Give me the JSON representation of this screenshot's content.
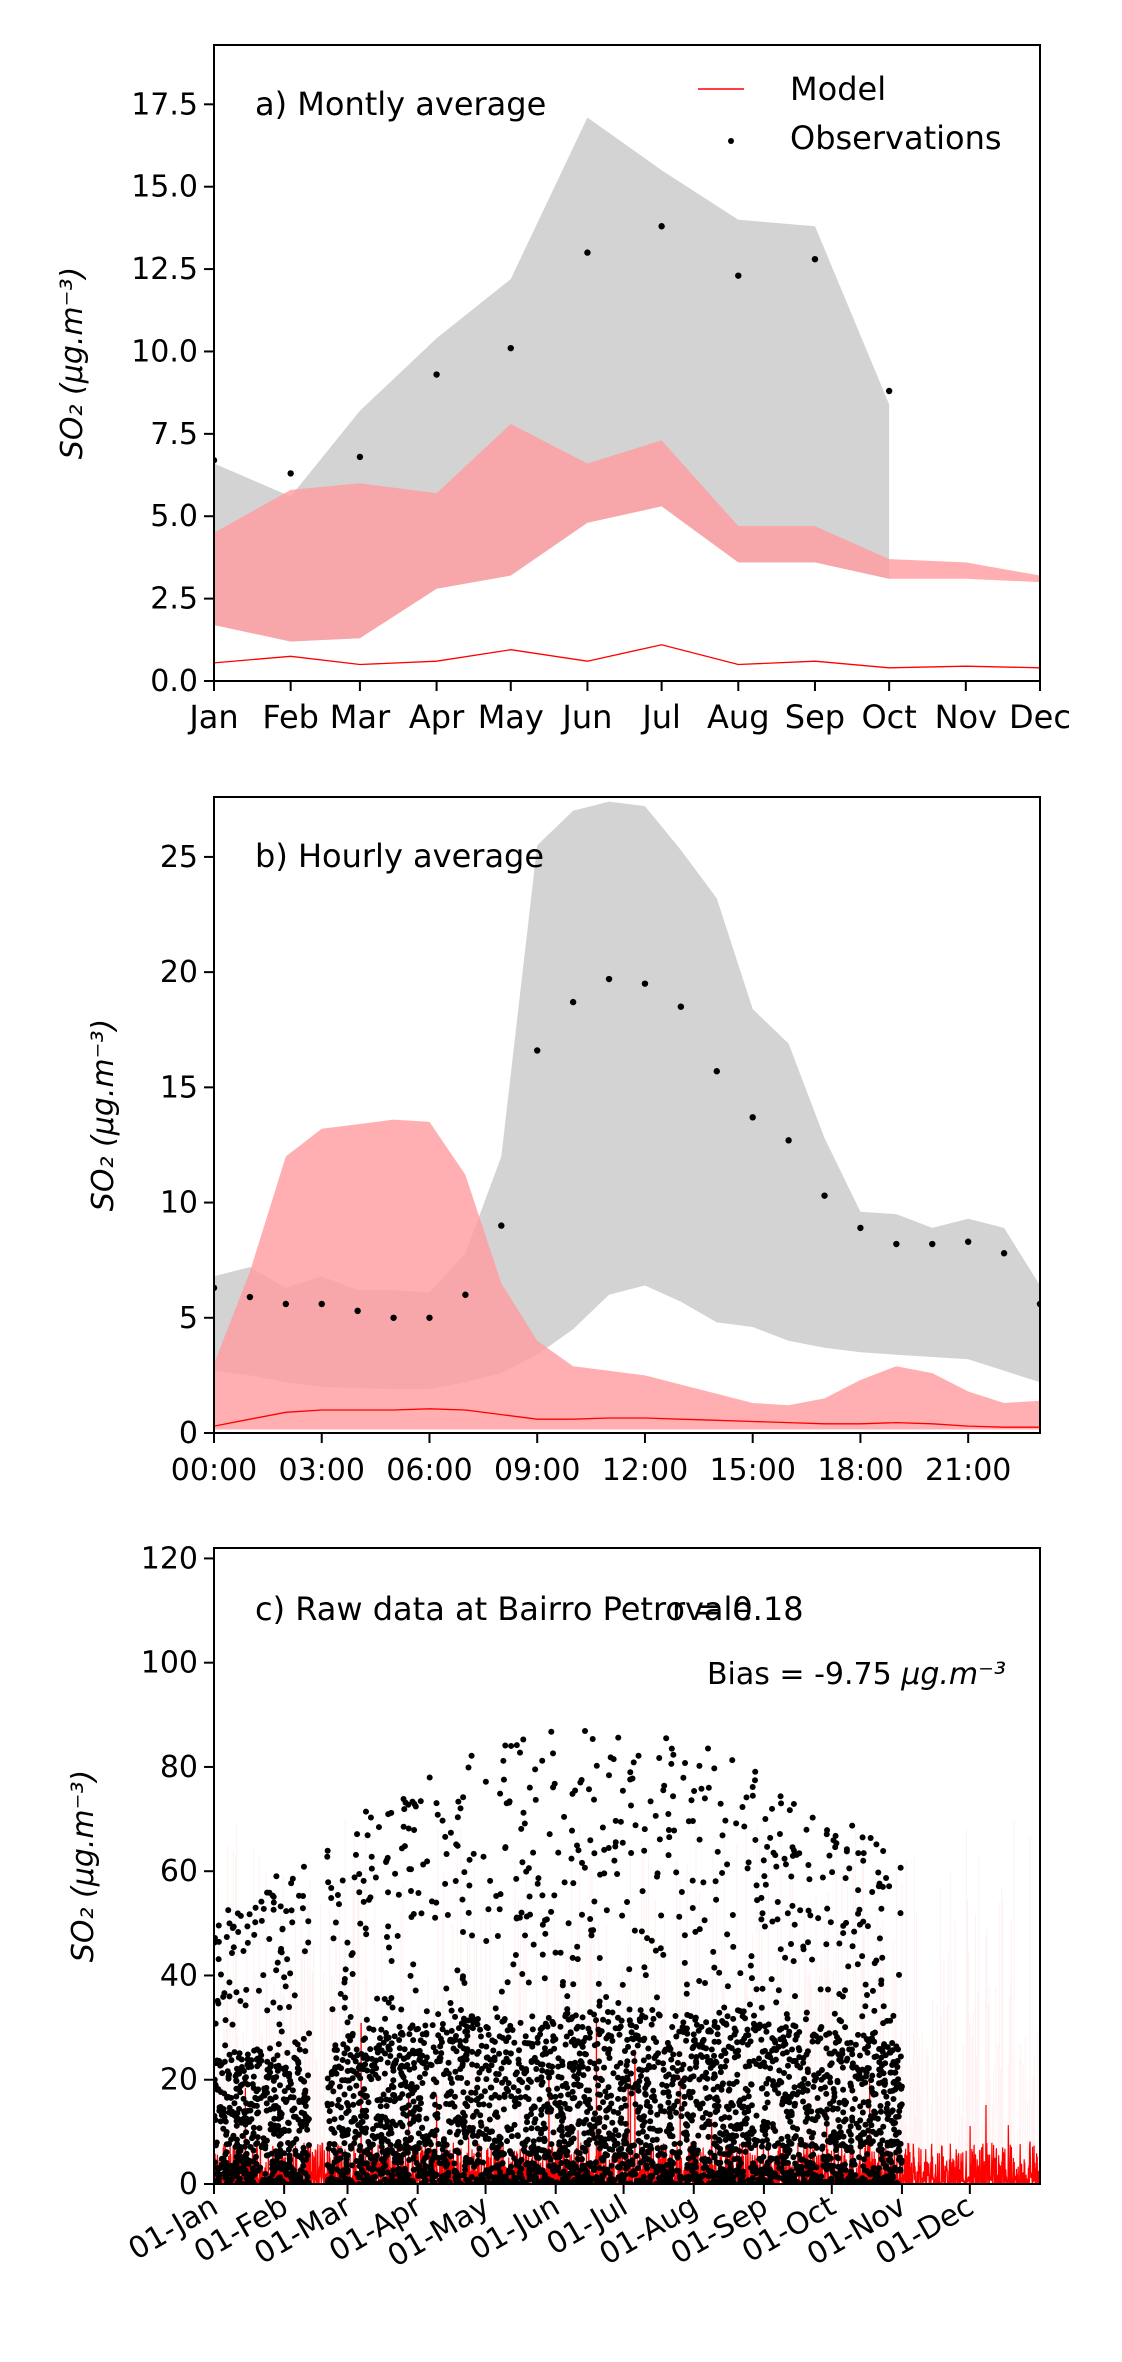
{
  "chart_data": [
    {
      "type": "line",
      "panel_label": "a) Montly average",
      "ylabel": "SO₂ (μg.m⁻³)",
      "ylim": [
        0,
        19.3
      ],
      "yticks": [
        "0.0",
        "2.5",
        "5.0",
        "7.5",
        "10.0",
        "12.5",
        "15.0",
        "17.5"
      ],
      "yticks_values": [
        0,
        2.5,
        5.0,
        7.5,
        10.0,
        12.5,
        15.0,
        17.5
      ],
      "categories": [
        "Jan",
        "Feb",
        "Mar",
        "Apr",
        "May",
        "Jun",
        "Jul",
        "Aug",
        "Sep",
        "Oct",
        "Nov",
        "Dec"
      ],
      "category_positions": [
        0,
        31,
        59,
        90,
        120,
        151,
        181,
        212,
        243,
        273,
        304,
        334
      ],
      "legend": {
        "placement": "top-right",
        "entries": [
          {
            "label": "Model",
            "color": "#ff0000",
            "kind": "line"
          },
          {
            "label": "Observations",
            "color": "#000000",
            "kind": "point"
          }
        ]
      },
      "series": [
        {
          "name": "Model",
          "kind": "line",
          "color": "#ff0000",
          "values": [
            0.55,
            0.75,
            0.5,
            0.6,
            0.95,
            0.6,
            1.1,
            0.5,
            0.6,
            0.4,
            0.45,
            0.4
          ]
        },
        {
          "name": "Model",
          "kind": "band",
          "color": "#ff9ea0",
          "upper": [
            4.5,
            5.8,
            6.0,
            5.7,
            7.8,
            6.6,
            7.3,
            4.7,
            4.7,
            3.7,
            3.6,
            3.2
          ],
          "lower": [
            1.7,
            1.2,
            1.3,
            2.8,
            3.2,
            4.8,
            5.3,
            3.6,
            3.6,
            3.1,
            3.1,
            3.0
          ]
        },
        {
          "name": "Observations",
          "kind": "points",
          "color": "#000000",
          "values": [
            6.7,
            6.3,
            6.8,
            9.3,
            10.1,
            13.0,
            13.8,
            12.3,
            12.8,
            8.8,
            null,
            null
          ]
        },
        {
          "name": "Observations",
          "kind": "band",
          "color": "#d3d3d3",
          "upper": [
            6.6,
            5.6,
            8.2,
            10.4,
            12.2,
            17.1,
            15.5,
            14.0,
            13.8,
            8.4,
            null,
            null
          ],
          "lower": [
            1.7,
            1.2,
            1.3,
            2.8,
            3.2,
            4.8,
            5.3,
            3.6,
            3.6,
            3.1,
            null,
            null
          ]
        }
      ]
    },
    {
      "type": "line",
      "panel_label": "b) Hourly average",
      "ylabel": "SO₂ (μg.m⁻³)",
      "ylim": [
        0,
        27.6
      ],
      "yticks": [
        "0",
        "5",
        "10",
        "15",
        "20",
        "25"
      ],
      "yticks_values": [
        0,
        5,
        10,
        15,
        20,
        25
      ],
      "xlabels": [
        "00:00",
        "03:00",
        "06:00",
        "09:00",
        "12:00",
        "15:00",
        "18:00",
        "21:00"
      ],
      "xticks_values": [
        0,
        3,
        6,
        9,
        12,
        15,
        18,
        21
      ],
      "xlim": [
        0,
        23
      ],
      "series": [
        {
          "name": "Model",
          "kind": "line",
          "color": "#ff0000",
          "x": [
            0,
            1,
            2,
            3,
            4,
            5,
            6,
            7,
            8,
            9,
            10,
            11,
            12,
            13,
            14,
            15,
            16,
            17,
            18,
            19,
            20,
            21,
            22,
            23
          ],
          "values": [
            0.3,
            0.6,
            0.9,
            1.0,
            1.0,
            1.0,
            1.05,
            1.0,
            0.8,
            0.6,
            0.6,
            0.65,
            0.65,
            0.6,
            0.55,
            0.5,
            0.45,
            0.4,
            0.4,
            0.45,
            0.4,
            0.3,
            0.25,
            0.25
          ]
        },
        {
          "name": "Model",
          "kind": "band",
          "color": "#ff9ea0",
          "x": [
            0,
            1,
            2,
            3,
            4,
            5,
            6,
            7,
            8,
            9,
            10,
            11,
            12,
            13,
            14,
            15,
            16,
            17,
            18,
            19,
            20,
            21,
            22,
            23
          ],
          "upper": [
            3.0,
            7.0,
            12.0,
            13.2,
            13.4,
            13.6,
            13.5,
            11.2,
            6.5,
            4.0,
            2.9,
            2.7,
            2.5,
            2.1,
            1.7,
            1.3,
            1.2,
            1.5,
            2.3,
            2.9,
            2.6,
            1.8,
            1.3,
            1.4
          ],
          "lower": [
            0.15,
            0.15,
            0.15,
            0.15,
            0.15,
            0.15,
            0.15,
            0.15,
            0.15,
            0.15,
            0.15,
            0.15,
            0.15,
            0.15,
            0.15,
            0.15,
            0.15,
            0.15,
            0.15,
            0.15,
            0.15,
            0.15,
            0.15,
            0.15
          ]
        },
        {
          "name": "Observations",
          "kind": "points",
          "color": "#000000",
          "x": [
            0,
            1,
            2,
            3,
            4,
            5,
            6,
            7,
            8,
            9,
            10,
            11,
            12,
            13,
            14,
            15,
            16,
            17,
            18,
            19,
            20,
            21,
            22,
            23
          ],
          "values": [
            6.3,
            5.9,
            5.6,
            5.6,
            5.3,
            5.0,
            5.0,
            6.0,
            9.0,
            16.6,
            18.7,
            19.7,
            19.5,
            18.5,
            15.7,
            13.7,
            12.7,
            10.3,
            8.9,
            8.2,
            8.2,
            8.3,
            7.8,
            5.6
          ]
        },
        {
          "name": "Observations",
          "kind": "band",
          "color": "#d3d3d3",
          "x": [
            0,
            1,
            2,
            3,
            4,
            5,
            6,
            7,
            8,
            9,
            10,
            11,
            12,
            13,
            14,
            15,
            16,
            17,
            18,
            19,
            20,
            21,
            22,
            23
          ],
          "upper": [
            6.8,
            7.2,
            6.3,
            6.8,
            6.2,
            6.2,
            6.1,
            7.8,
            12.0,
            25.5,
            27.0,
            27.4,
            27.2,
            25.3,
            23.2,
            18.4,
            16.9,
            12.8,
            9.6,
            9.5,
            8.9,
            9.3,
            8.9,
            6.4
          ],
          "lower": [
            2.7,
            2.5,
            2.2,
            2.0,
            1.95,
            1.9,
            1.9,
            2.2,
            2.6,
            3.4,
            4.5,
            6.0,
            6.4,
            5.7,
            4.8,
            4.6,
            4.0,
            3.7,
            3.5,
            3.4,
            3.3,
            3.2,
            2.7,
            2.2
          ]
        }
      ]
    },
    {
      "type": "scatter",
      "panel_label": "c) Raw data at Bairro Petrovale",
      "r_label": "r = 0.18",
      "bias_prefix": "Bias = -9.75 ",
      "bias_unit": "μg.m⁻³",
      "ylabel": "SO₂ (μg.m⁻³)",
      "ylim": [
        0,
        122
      ],
      "yticks": [
        "0",
        "20",
        "40",
        "60",
        "80",
        "100",
        "120"
      ],
      "yticks_values": [
        0,
        20,
        40,
        60,
        80,
        100,
        120
      ],
      "xlabels": [
        "01-Jan",
        "01-Feb",
        "01-Mar",
        "01-Apr",
        "01-May",
        "01-Jun",
        "01-Jul",
        "01-Aug",
        "01-Sep",
        "01-Oct",
        "01-Nov",
        "01-Dec"
      ],
      "xticks_values": [
        0,
        31,
        59,
        90,
        120,
        151,
        181,
        212,
        243,
        273,
        304,
        334
      ],
      "xlim": [
        0,
        365
      ],
      "observations_day_range": [
        0,
        304
      ],
      "observations_approx_point_count": 4000,
      "observations_max": 87.5,
      "observations_typical_range": [
        0,
        30
      ],
      "observation_gap_days": [
        [
          42,
          50
        ]
      ],
      "model_color": "#ff0000",
      "model_typical_max": 8,
      "model_peak_max": 35,
      "model_peaks_days": [
        65,
        86,
        148,
        169,
        183,
        184,
        186,
        206
      ],
      "model_band_max": 70
    }
  ]
}
